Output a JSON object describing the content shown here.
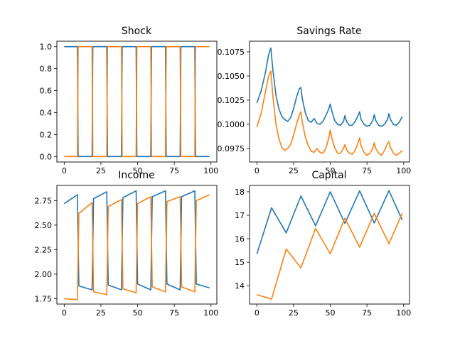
{
  "figure": {
    "background": "#ffffff"
  },
  "series_colors": [
    "#1f77b4",
    "#ff7f0e"
  ],
  "chart_data": [
    {
      "type": "line",
      "title": "Shock",
      "xlim": [
        -5,
        104
      ],
      "ylim": [
        -0.05,
        1.05
      ],
      "xticks": [
        0,
        25,
        50,
        75,
        100
      ],
      "xtick_labels": [
        "0",
        "25",
        "50",
        "75",
        "100"
      ],
      "yticks": [
        0.0,
        0.2,
        0.4,
        0.6,
        0.8,
        1.0
      ],
      "ytick_labels": [
        "0.0",
        "0.2",
        "0.4",
        "0.6",
        "0.8",
        "1.0"
      ],
      "series": [
        {
          "x": [
            0,
            9,
            9.5,
            19,
            19.5,
            29,
            29.5,
            39,
            39.5,
            49,
            49.5,
            59,
            59.5,
            69,
            69.5,
            79,
            79.5,
            89,
            89.5,
            99
          ],
          "values": [
            1,
            1,
            0,
            0,
            1,
            1,
            0,
            0,
            1,
            1,
            0,
            0,
            1,
            1,
            0,
            0,
            1,
            1,
            0,
            0
          ]
        },
        {
          "x": [
            0,
            9,
            9.5,
            19,
            19.5,
            29,
            29.5,
            39,
            39.5,
            49,
            49.5,
            59,
            59.5,
            69,
            69.5,
            79,
            79.5,
            89,
            89.5,
            99
          ],
          "values": [
            0,
            0,
            1,
            1,
            0,
            0,
            1,
            1,
            0,
            0,
            1,
            1,
            0,
            0,
            1,
            1,
            0,
            0,
            1,
            1
          ]
        }
      ]
    },
    {
      "type": "line",
      "title": "Savings Rate",
      "xlim": [
        -5,
        104
      ],
      "ylim": [
        0.0961,
        0.1086
      ],
      "xticks": [
        0,
        25,
        50,
        75,
        100
      ],
      "xtick_labels": [
        "0",
        "25",
        "50",
        "75",
        "100"
      ],
      "yticks": [
        0.0975,
        0.1,
        0.1025,
        0.105,
        0.1075
      ],
      "ytick_labels": [
        "0.0975",
        "0.1000",
        "0.1025",
        "0.1050",
        "0.1075"
      ],
      "series": [
        {
          "x": [
            0,
            3,
            6,
            8,
            9.5,
            11,
            13,
            15,
            17,
            19,
            21,
            23,
            25,
            27,
            29,
            30,
            31,
            33,
            35,
            37,
            39,
            41,
            43,
            45,
            47,
            49,
            50,
            51,
            53,
            55,
            57,
            59,
            60,
            61,
            63,
            65,
            67,
            69,
            70,
            71,
            73,
            75,
            77,
            79,
            80,
            81,
            83,
            85,
            87,
            89,
            90,
            91,
            93,
            95,
            97,
            99
          ],
          "values": [
            0.1022,
            0.1035,
            0.1055,
            0.1072,
            0.1079,
            0.1055,
            0.103,
            0.1016,
            0.1008,
            0.1005,
            0.1003,
            0.1007,
            0.1016,
            0.1028,
            0.1037,
            0.1038,
            0.1026,
            0.1012,
            0.1004,
            0.1002,
            0.1006,
            0.1001,
            0.1,
            0.1003,
            0.1009,
            0.1016,
            0.1021,
            0.1014,
            0.1004,
            0.1,
            0.0999,
            0.1003,
            0.1009,
            0.1003,
            0.0999,
            0.0999,
            0.1003,
            0.1009,
            0.1013,
            0.1005,
            0.1,
            0.0998,
            0.0999,
            0.1004,
            0.101,
            0.1004,
            0.0999,
            0.0998,
            0.1,
            0.1005,
            0.1011,
            0.1005,
            0.1,
            0.0999,
            0.1002,
            0.1008
          ]
        },
        {
          "x": [
            0,
            3,
            6,
            8,
            9.5,
            11,
            13,
            15,
            17,
            19,
            21,
            23,
            25,
            27,
            29,
            30,
            31,
            33,
            35,
            37,
            39,
            41,
            43,
            45,
            47,
            49,
            50,
            51,
            53,
            55,
            57,
            59,
            60,
            61,
            63,
            65,
            67,
            69,
            70,
            71,
            73,
            75,
            77,
            79,
            80,
            81,
            83,
            85,
            87,
            89,
            90,
            91,
            93,
            95,
            97,
            99
          ],
          "values": [
            0.0997,
            0.1012,
            0.1035,
            0.105,
            0.1055,
            0.1028,
            0.1,
            0.0985,
            0.0976,
            0.0973,
            0.0975,
            0.0979,
            0.0989,
            0.1,
            0.101,
            0.1013,
            0.1002,
            0.0987,
            0.0978,
            0.0972,
            0.0971,
            0.0975,
            0.0971,
            0.097,
            0.0975,
            0.0986,
            0.0994,
            0.0986,
            0.0976,
            0.097,
            0.097,
            0.0975,
            0.0979,
            0.0974,
            0.097,
            0.0969,
            0.0973,
            0.0981,
            0.0986,
            0.0978,
            0.0971,
            0.0968,
            0.097,
            0.0975,
            0.0981,
            0.0975,
            0.097,
            0.0968,
            0.0973,
            0.098,
            0.0982,
            0.0976,
            0.097,
            0.0968,
            0.097,
            0.0973
          ]
        }
      ]
    },
    {
      "type": "line",
      "title": "Income",
      "xlim": [
        -5,
        104
      ],
      "ylim": [
        1.695,
        2.905
      ],
      "xticks": [
        0,
        25,
        50,
        75,
        100
      ],
      "xtick_labels": [
        "0",
        "25",
        "50",
        "75",
        "100"
      ],
      "yticks": [
        1.75,
        2.0,
        2.25,
        2.5,
        2.75
      ],
      "ytick_labels": [
        "1.75",
        "2.00",
        "2.25",
        "2.50",
        "2.75"
      ],
      "series": [
        {
          "x": [
            0,
            9,
            10,
            19,
            20,
            29,
            30,
            39,
            40,
            49,
            50,
            59,
            60,
            69,
            70,
            79,
            80,
            89,
            90,
            99
          ],
          "values": [
            2.72,
            2.81,
            1.88,
            1.84,
            2.77,
            2.84,
            1.89,
            1.84,
            2.78,
            2.85,
            1.9,
            1.84,
            2.79,
            2.85,
            1.9,
            1.84,
            2.79,
            2.85,
            1.9,
            1.86
          ]
        },
        {
          "x": [
            0,
            9,
            10,
            19,
            20,
            29,
            30,
            39,
            40,
            49,
            50,
            59,
            60,
            69,
            70,
            79,
            80,
            89,
            90,
            99
          ],
          "values": [
            1.75,
            1.74,
            2.62,
            2.73,
            1.82,
            1.79,
            2.69,
            2.76,
            1.85,
            1.81,
            2.72,
            2.79,
            1.87,
            1.82,
            2.74,
            2.79,
            1.87,
            1.82,
            2.75,
            2.81
          ]
        }
      ]
    },
    {
      "type": "line",
      "title": "Capital",
      "xlim": [
        -5,
        104
      ],
      "ylim": [
        13.22,
        18.27
      ],
      "xticks": [
        0,
        25,
        50,
        75,
        100
      ],
      "xtick_labels": [
        "0",
        "25",
        "50",
        "75",
        "100"
      ],
      "yticks": [
        14,
        15,
        16,
        17,
        18
      ],
      "ytick_labels": [
        "14",
        "15",
        "16",
        "17",
        "18"
      ],
      "series": [
        {
          "x": [
            0,
            10,
            20,
            30,
            40,
            50,
            60,
            70,
            80,
            90,
            99
          ],
          "values": [
            15.35,
            17.32,
            16.25,
            17.82,
            16.55,
            18.0,
            16.65,
            18.04,
            16.67,
            18.05,
            16.8
          ]
        },
        {
          "x": [
            0,
            10,
            20,
            30,
            40,
            50,
            60,
            70,
            80,
            90,
            99
          ],
          "values": [
            13.62,
            13.43,
            15.56,
            14.76,
            16.44,
            15.36,
            16.88,
            15.64,
            17.08,
            15.79,
            17.08
          ]
        }
      ]
    }
  ]
}
